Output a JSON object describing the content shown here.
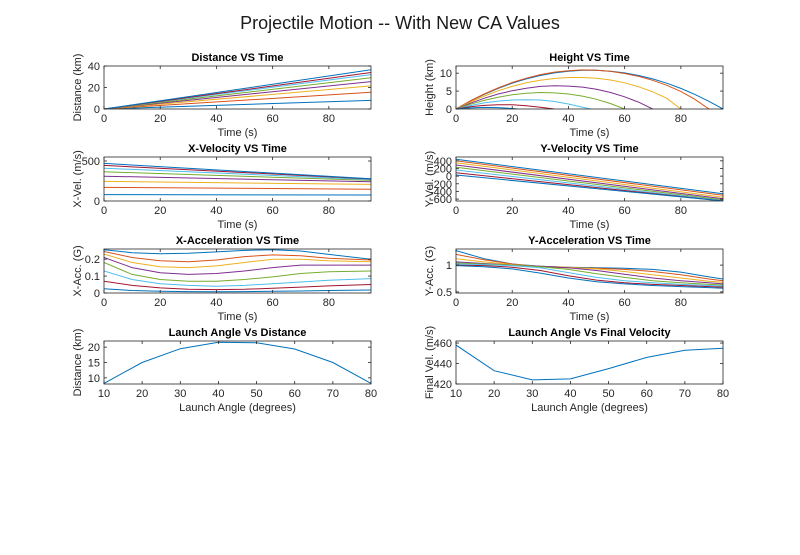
{
  "figure": {
    "title": "Projectile Motion -- With New CA Values"
  },
  "colors": [
    "#0072BD",
    "#D95319",
    "#EDB120",
    "#7E2F8E",
    "#77AC30",
    "#4DBEEE",
    "#A2142F",
    "#0072BD"
  ],
  "chart_data": [
    {
      "type": "line",
      "title": "Distance VS Time",
      "xlabel": "Time (s)",
      "ylabel": "Distance (km)",
      "xlim": [
        0,
        95
      ],
      "ylim": [
        0,
        40
      ],
      "xticks": [
        0,
        20,
        40,
        60,
        80
      ],
      "yticks": [
        0,
        20,
        40
      ],
      "series": [
        {
          "x": [
            0,
            95
          ],
          "y": [
            0,
            8
          ]
        },
        {
          "x": [
            0,
            95
          ],
          "y": [
            0,
            15.5
          ]
        },
        {
          "x": [
            0,
            95
          ],
          "y": [
            0,
            21.5
          ]
        },
        {
          "x": [
            0,
            95
          ],
          "y": [
            0,
            25.5
          ]
        },
        {
          "x": [
            0,
            95
          ],
          "y": [
            0,
            29
          ]
        },
        {
          "x": [
            0,
            95
          ],
          "y": [
            0,
            32
          ]
        },
        {
          "x": [
            0,
            95
          ],
          "y": [
            0,
            34
          ]
        },
        {
          "x": [
            0,
            95
          ],
          "y": [
            0,
            36.5
          ]
        }
      ]
    },
    {
      "type": "line",
      "title": "Height VS Time",
      "xlabel": "Time (s)",
      "ylabel": "Height (km)",
      "xlim": [
        0,
        95
      ],
      "ylim": [
        0,
        12
      ],
      "xticks": [
        0,
        20,
        40,
        60,
        80
      ],
      "yticks": [
        0,
        5,
        10
      ],
      "series": [
        {
          "x": [
            0,
            5,
            10,
            15,
            20,
            25,
            30,
            35,
            40,
            45,
            50,
            55,
            60,
            65,
            70,
            75,
            80,
            85,
            90,
            95
          ],
          "y": [
            0,
            2.16,
            4.08,
            5.76,
            7.2,
            8.4,
            9.36,
            10.08,
            10.56,
            10.8,
            10.8,
            10.56,
            10.08,
            9.36,
            8.4,
            7.2,
            5.76,
            4.08,
            2.16,
            0
          ]
        },
        {
          "x": [
            0,
            5,
            10,
            15,
            20,
            25,
            30,
            35,
            40,
            45,
            50,
            55,
            60,
            65,
            70,
            75,
            80,
            85,
            90
          ],
          "y": [
            0,
            2.22,
            4.2,
            5.9,
            7.4,
            8.6,
            9.6,
            10.3,
            10.7,
            10.9,
            10.8,
            10.5,
            9.9,
            9.1,
            8.0,
            6.6,
            4.9,
            2.7,
            0
          ]
        },
        {
          "x": [
            0,
            5,
            10,
            15,
            20,
            25,
            30,
            35,
            40,
            45,
            50,
            55,
            60,
            65,
            70,
            75,
            80
          ],
          "y": [
            0,
            1.9,
            3.6,
            5.1,
            6.3,
            7.3,
            8.0,
            8.5,
            8.8,
            8.8,
            8.6,
            8.1,
            7.3,
            6.2,
            4.8,
            3.0,
            0
          ]
        },
        {
          "x": [
            0,
            5,
            10,
            15,
            20,
            25,
            30,
            35,
            40,
            45,
            50,
            55,
            60,
            65,
            70
          ],
          "y": [
            0,
            1.6,
            3.0,
            4.2,
            5.1,
            5.8,
            6.3,
            6.5,
            6.4,
            6.1,
            5.5,
            4.6,
            3.4,
            1.9,
            0
          ]
        },
        {
          "x": [
            0,
            5,
            10,
            15,
            20,
            25,
            30,
            35,
            40,
            45,
            50,
            55,
            60
          ],
          "y": [
            0,
            1.3,
            2.4,
            3.3,
            4.0,
            4.4,
            4.6,
            4.5,
            4.2,
            3.6,
            2.7,
            1.5,
            0
          ]
        },
        {
          "x": [
            0,
            5,
            10,
            15,
            20,
            25,
            30,
            35,
            40,
            45,
            48
          ],
          "y": [
            0,
            0.95,
            1.7,
            2.2,
            2.5,
            2.6,
            2.5,
            2.1,
            1.4,
            0.5,
            0
          ]
        },
        {
          "x": [
            0,
            5,
            10,
            15,
            20,
            25,
            30,
            35
          ],
          "y": [
            0,
            0.6,
            1.0,
            1.2,
            1.2,
            0.9,
            0.5,
            0
          ]
        },
        {
          "x": [
            0,
            5,
            10,
            15,
            20,
            22
          ],
          "y": [
            0,
            0.3,
            0.45,
            0.4,
            0.15,
            0
          ]
        }
      ]
    },
    {
      "type": "line",
      "title": "X-Velocity VS Time",
      "xlabel": "Time (s)",
      "ylabel": "X-Vel. (m/s)",
      "xlim": [
        0,
        95
      ],
      "ylim": [
        0,
        550
      ],
      "xticks": [
        0,
        20,
        40,
        60,
        80
      ],
      "yticks": [
        0,
        500
      ],
      "series": [
        {
          "x": [
            0,
            95
          ],
          "y": [
            80,
            75
          ]
        },
        {
          "x": [
            0,
            95
          ],
          "y": [
            170,
            148
          ]
        },
        {
          "x": [
            0,
            95
          ],
          "y": [
            245,
            208
          ]
        },
        {
          "x": [
            0,
            95
          ],
          "y": [
            310,
            240
          ]
        },
        {
          "x": [
            0,
            95
          ],
          "y": [
            365,
            258
          ]
        },
        {
          "x": [
            0,
            95
          ],
          "y": [
            410,
            268
          ]
        },
        {
          "x": [
            0,
            95
          ],
          "y": [
            445,
            275
          ]
        },
        {
          "x": [
            0,
            95
          ],
          "y": [
            470,
            278
          ]
        }
      ]
    },
    {
      "type": "line",
      "title": "Y-Velocity VS Time",
      "xlabel": "Time (s)",
      "ylabel": "Y-Vel. (m/s)",
      "xlim": [
        0,
        95
      ],
      "ylim": [
        -650,
        500
      ],
      "xticks": [
        0,
        20,
        40,
        60,
        80
      ],
      "yticks": [
        -600,
        -400,
        -200,
        0,
        200,
        400
      ],
      "series": [
        {
          "x": [
            0,
            95
          ],
          "y": [
            440,
            -460
          ]
        },
        {
          "x": [
            0,
            95
          ],
          "y": [
            400,
            -500
          ]
        },
        {
          "x": [
            0,
            95
          ],
          "y": [
            350,
            -550
          ]
        },
        {
          "x": [
            0,
            95
          ],
          "y": [
            290,
            -590
          ]
        },
        {
          "x": [
            0,
            95
          ],
          "y": [
            230,
            -620
          ]
        },
        {
          "x": [
            0,
            95
          ],
          "y": [
            160,
            -640
          ]
        },
        {
          "x": [
            0,
            95
          ],
          "y": [
            90,
            -650
          ]
        },
        {
          "x": [
            0,
            95
          ],
          "y": [
            30,
            -650
          ]
        }
      ]
    },
    {
      "type": "line",
      "title": "X-Acceleration VS Time",
      "xlabel": "Time (s)",
      "ylabel": "X-Acc. (G)",
      "xlim": [
        0,
        95
      ],
      "ylim": [
        0,
        0.26
      ],
      "xticks": [
        0,
        20,
        40,
        60,
        80
      ],
      "yticks": [
        0,
        0.1,
        0.2
      ],
      "series": [
        {
          "x": [
            0,
            10,
            20,
            30,
            40,
            50,
            60,
            70,
            80,
            95
          ],
          "y": [
            0.255,
            0.238,
            0.232,
            0.235,
            0.243,
            0.252,
            0.256,
            0.248,
            0.228,
            0.2
          ]
        },
        {
          "x": [
            0,
            10,
            20,
            30,
            40,
            50,
            60,
            70,
            80,
            95
          ],
          "y": [
            0.245,
            0.21,
            0.19,
            0.185,
            0.195,
            0.215,
            0.225,
            0.22,
            0.205,
            0.195
          ]
        },
        {
          "x": [
            0,
            10,
            20,
            30,
            40,
            50,
            60,
            70,
            80,
            95
          ],
          "y": [
            0.23,
            0.18,
            0.155,
            0.15,
            0.16,
            0.18,
            0.2,
            0.2,
            0.19,
            0.185
          ]
        },
        {
          "x": [
            0,
            10,
            20,
            30,
            40,
            50,
            60,
            70,
            80,
            95
          ],
          "y": [
            0.21,
            0.15,
            0.12,
            0.11,
            0.115,
            0.13,
            0.15,
            0.165,
            0.165,
            0.165
          ]
        },
        {
          "x": [
            0,
            10,
            20,
            30,
            40,
            50,
            60,
            70,
            80,
            95
          ],
          "y": [
            0.18,
            0.11,
            0.08,
            0.07,
            0.07,
            0.08,
            0.095,
            0.115,
            0.125,
            0.13
          ]
        },
        {
          "x": [
            0,
            10,
            20,
            30,
            40,
            50,
            60,
            70,
            80,
            95
          ],
          "y": [
            0.13,
            0.08,
            0.055,
            0.045,
            0.04,
            0.045,
            0.055,
            0.065,
            0.075,
            0.085
          ]
        },
        {
          "x": [
            0,
            10,
            20,
            30,
            40,
            50,
            60,
            70,
            80,
            95
          ],
          "y": [
            0.07,
            0.045,
            0.03,
            0.022,
            0.02,
            0.022,
            0.028,
            0.035,
            0.042,
            0.05
          ]
        },
        {
          "x": [
            0,
            10,
            20,
            30,
            40,
            50,
            60,
            70,
            80,
            95
          ],
          "y": [
            0.025,
            0.015,
            0.01,
            0.008,
            0.007,
            0.008,
            0.01,
            0.012,
            0.015,
            0.018
          ]
        }
      ]
    },
    {
      "type": "line",
      "title": "Y-Acceleration VS Time",
      "xlabel": "Time (s)",
      "ylabel": "Y-Acc. (G)",
      "xlim": [
        0,
        95
      ],
      "ylim": [
        0.48,
        1.3
      ],
      "xticks": [
        0,
        20,
        40,
        60,
        80
      ],
      "yticks": [
        0.5,
        1
      ],
      "series": [
        {
          "x": [
            0,
            10,
            20,
            30,
            40,
            50,
            60,
            70,
            80,
            90,
            95
          ],
          "y": [
            1.27,
            1.12,
            1.02,
            0.98,
            0.96,
            0.95,
            0.94,
            0.92,
            0.87,
            0.78,
            0.74
          ]
        },
        {
          "x": [
            0,
            10,
            20,
            30,
            40,
            50,
            60,
            70,
            80,
            90,
            95
          ],
          "y": [
            1.2,
            1.1,
            1.02,
            0.97,
            0.95,
            0.94,
            0.92,
            0.88,
            0.82,
            0.74,
            0.71
          ]
        },
        {
          "x": [
            0,
            10,
            20,
            30,
            40,
            50,
            60,
            70,
            80,
            90,
            95
          ],
          "y": [
            1.12,
            1.06,
            1.01,
            0.98,
            0.96,
            0.93,
            0.88,
            0.82,
            0.76,
            0.7,
            0.68
          ]
        },
        {
          "x": [
            0,
            10,
            20,
            30,
            40,
            50,
            60,
            70,
            80,
            90,
            95
          ],
          "y": [
            1.06,
            1.03,
            1.0,
            0.98,
            0.95,
            0.9,
            0.83,
            0.76,
            0.71,
            0.67,
            0.65
          ]
        },
        {
          "x": [
            0,
            10,
            20,
            30,
            40,
            50,
            60,
            70,
            80,
            90,
            95
          ],
          "y": [
            1.04,
            1.02,
            1.0,
            0.97,
            0.92,
            0.84,
            0.77,
            0.71,
            0.67,
            0.64,
            0.63
          ]
        },
        {
          "x": [
            0,
            10,
            20,
            30,
            40,
            50,
            60,
            70,
            80,
            90,
            95
          ],
          "y": [
            1.02,
            1.01,
            0.99,
            0.95,
            0.86,
            0.77,
            0.71,
            0.67,
            0.64,
            0.62,
            0.61
          ]
        },
        {
          "x": [
            0,
            10,
            20,
            30,
            40,
            50,
            60,
            70,
            80,
            90,
            95
          ],
          "y": [
            1.0,
            0.99,
            0.96,
            0.9,
            0.8,
            0.72,
            0.67,
            0.64,
            0.62,
            0.6,
            0.59
          ]
        },
        {
          "x": [
            0,
            10,
            20,
            30,
            40,
            50,
            60,
            70,
            80,
            90,
            95
          ],
          "y": [
            0.99,
            0.97,
            0.93,
            0.85,
            0.76,
            0.69,
            0.65,
            0.62,
            0.6,
            0.58,
            0.57
          ]
        }
      ]
    },
    {
      "type": "line",
      "title": "Launch Angle Vs Distance",
      "xlabel": "Launch Angle (degrees)",
      "ylabel": "Distance (km)",
      "xlim": [
        10,
        80
      ],
      "ylim": [
        8,
        22
      ],
      "xticks": [
        10,
        20,
        30,
        40,
        50,
        60,
        70,
        80
      ],
      "yticks": [
        10,
        15,
        20
      ],
      "series": [
        {
          "x": [
            10,
            20,
            30,
            40,
            50,
            60,
            70,
            80
          ],
          "y": [
            8.2,
            15,
            19.5,
            21.6,
            21.4,
            19.4,
            15,
            8.2
          ]
        }
      ]
    },
    {
      "type": "line",
      "title": "Launch Angle Vs Final Velocity",
      "xlabel": "Launch Angle (degrees)",
      "ylabel": "Final Vel. (m/s)",
      "xlim": [
        10,
        80
      ],
      "ylim": [
        420,
        462
      ],
      "xticks": [
        10,
        20,
        30,
        40,
        50,
        60,
        70,
        80
      ],
      "yticks": [
        420,
        440,
        460
      ],
      "series": [
        {
          "x": [
            10,
            20,
            30,
            40,
            50,
            60,
            70,
            80
          ],
          "y": [
            458,
            433,
            424,
            425,
            435,
            446,
            453,
            455
          ]
        }
      ]
    }
  ]
}
